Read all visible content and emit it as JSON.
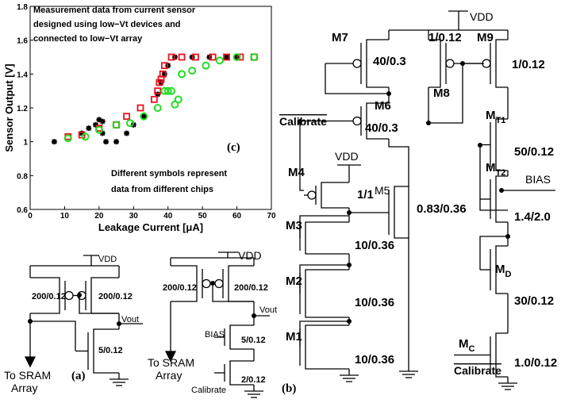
{
  "chart_data": {
    "type": "scatter",
    "annotations": [
      "Measurement data from current sensor",
      "designed using low−Vt devices and",
      "connected to low−Vt array"
    ],
    "label": "(c)",
    "notes": [
      "Different symbols represent",
      "data from different chips"
    ],
    "xlabel": "Leakage Current [μA]",
    "ylabel": "Sensor Output [V]",
    "xlim": [
      0,
      70
    ],
    "xticks": [
      0,
      10,
      20,
      30,
      40,
      50,
      60,
      70
    ],
    "ylim": [
      0.6,
      1.8
    ],
    "yticks": [
      0.6,
      0.8,
      1,
      1.2,
      1.4,
      1.6,
      1.8
    ],
    "series": [
      {
        "marker": "star",
        "color": "#000000",
        "x": [
          7,
          15,
          17,
          19,
          20,
          21,
          21,
          22,
          25,
          28,
          30,
          33,
          37,
          38,
          39,
          40,
          42,
          47,
          52,
          57,
          60
        ],
        "values": [
          1.0,
          1.05,
          1.08,
          1.1,
          1.13,
          1.12,
          1.05,
          1.0,
          1.0,
          1.05,
          1.1,
          1.15,
          1.28,
          1.35,
          1.4,
          1.45,
          1.5,
          1.5,
          1.5,
          1.5,
          1.5
        ]
      },
      {
        "marker": "square",
        "color": "#e8141e",
        "x": [
          11,
          15,
          20,
          25,
          28,
          32,
          36,
          37,
          37.5,
          38,
          38.5,
          39,
          41,
          44,
          48,
          53,
          57,
          61,
          65
        ],
        "values": [
          1.03,
          1.04,
          1.08,
          1.1,
          1.15,
          1.2,
          1.25,
          1.3,
          1.35,
          1.37,
          1.4,
          1.45,
          1.5,
          1.5,
          1.5,
          1.5,
          1.5,
          1.5,
          1.5
        ]
      },
      {
        "marker": "circle",
        "color": "#22dd22",
        "x": [
          11,
          16,
          20,
          25,
          29,
          33,
          37,
          39,
          40,
          41,
          42,
          43,
          44,
          47,
          51,
          55,
          60,
          65
        ],
        "values": [
          1.02,
          1.03,
          1.07,
          1.1,
          1.11,
          1.15,
          1.2,
          1.3,
          1.3,
          1.3,
          1.22,
          1.25,
          1.4,
          1.42,
          1.45,
          1.48,
          1.5,
          1.5
        ]
      }
    ]
  },
  "circuit_a": {
    "supply": "VDD",
    "pmos_left": "200/0.12",
    "pmos_right": "200/0.12",
    "output": "Vout",
    "nmos": "5/0.12",
    "load_lines": [
      "To SRAM",
      "Array"
    ],
    "label": "(a)"
  },
  "circuit_a2": {
    "supply": "VDD",
    "pmos_left": "200/0.12",
    "pmos_right": "200/0.12",
    "output": "Vout",
    "bias": "BIAS",
    "nmos_top": "5/0.12",
    "nmos_bottom": "2/0.12",
    "calibrate": "Calibrate",
    "load_lines": [
      "To SRAM",
      "Array"
    ]
  },
  "circuit_b": {
    "supply": "VDD",
    "supply_m4": "VDD",
    "bias": "BIAS",
    "calibrate_m6": "Calibrate",
    "calibrate_mc": "Calibrate",
    "label": "(b)",
    "transistors": [
      {
        "name": "M7",
        "size": "40/0.3"
      },
      {
        "name": "M8",
        "size": "1/0.12"
      },
      {
        "name": "M9",
        "size": "1/0.12"
      },
      {
        "name": "M6",
        "size": "40/0.3"
      },
      {
        "name": "M4",
        "size": "1/1"
      },
      {
        "name": "M5",
        "size": "0.83/0.36"
      },
      {
        "name": "M3",
        "size": "10/0.36"
      },
      {
        "name": "M2",
        "size": "10/0.36"
      },
      {
        "name": "M1",
        "size": "10/0.36"
      },
      {
        "name": "M",
        "sub": "T1",
        "size": "50/0.12"
      },
      {
        "name": "M",
        "sub": "T2",
        "size": "1.4/2.0"
      },
      {
        "name": "M",
        "sub": "D",
        "size": "30/0.12"
      },
      {
        "name": "M",
        "sub": "C",
        "size": "1.0/0.12"
      }
    ]
  }
}
